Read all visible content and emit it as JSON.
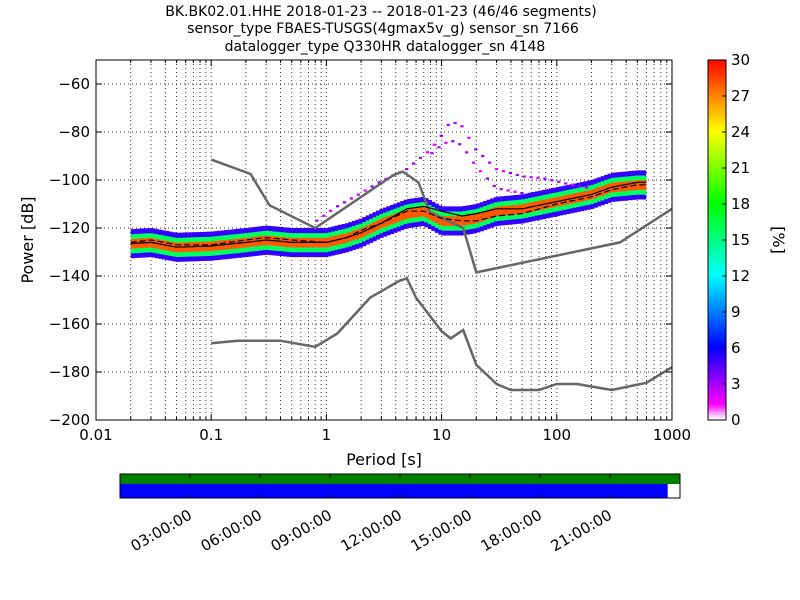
{
  "chart_data": {
    "type": "heatmap",
    "title_lines": [
      "BK.BK02.01.HHE   2018-01-23 -- 2018-01-23  (46/46 segments)",
      "sensor_type FBAES-TUSGS(4gmax5v_g) sensor_sn 7166",
      "datalogger_type Q330HR datalogger_sn 4148"
    ],
    "xlabel": "Period [s]",
    "ylabel": "Power [dB]",
    "xscale": "log",
    "xlim": [
      0.01,
      1000
    ],
    "ylim": [
      -200,
      -50
    ],
    "xticks": [
      {
        "value": 0.01,
        "label": "0.01"
      },
      {
        "value": 0.1,
        "label": "0.1"
      },
      {
        "value": 1,
        "label": "1"
      },
      {
        "value": 10,
        "label": "10"
      },
      {
        "value": 100,
        "label": "100"
      },
      {
        "value": 1000,
        "label": "1000"
      }
    ],
    "yticks": [
      {
        "value": -60,
        "label": "−60"
      },
      {
        "value": -80,
        "label": "−80"
      },
      {
        "value": -100,
        "label": "−100"
      },
      {
        "value": -120,
        "label": "−120"
      },
      {
        "value": -140,
        "label": "−140"
      },
      {
        "value": -160,
        "label": "−160"
      },
      {
        "value": -180,
        "label": "−180"
      },
      {
        "value": -200,
        "label": "−200"
      }
    ],
    "grid": true,
    "colorbar": {
      "label": "[%]",
      "min": 0,
      "max": 30,
      "ticks": [
        {
          "value": 0,
          "label": "0"
        },
        {
          "value": 3,
          "label": "3"
        },
        {
          "value": 6,
          "label": "6"
        },
        {
          "value": 9,
          "label": "9"
        },
        {
          "value": 12,
          "label": "12"
        },
        {
          "value": 15,
          "label": "15"
        },
        {
          "value": 18,
          "label": "18"
        },
        {
          "value": 21,
          "label": "21"
        },
        {
          "value": 24,
          "label": "24"
        },
        {
          "value": 27,
          "label": "27"
        },
        {
          "value": 30,
          "label": "30"
        }
      ]
    },
    "noise_models": [
      {
        "points": [
          [
            0.1,
            -168
          ],
          [
            0.17,
            -167
          ],
          [
            0.4,
            -167
          ],
          [
            0.8,
            -169.5
          ],
          [
            1.24,
            -164
          ],
          [
            2.4,
            -149
          ],
          [
            4.3,
            -142
          ],
          [
            5.0,
            -141
          ],
          [
            6.0,
            -149
          ],
          [
            10,
            -163
          ],
          [
            12,
            -166
          ],
          [
            15.4,
            -162.5
          ],
          [
            20,
            -177
          ],
          [
            30,
            -185
          ],
          [
            40,
            -187.5
          ],
          [
            70,
            -187.5
          ],
          [
            100,
            -185
          ],
          [
            150,
            -185
          ],
          [
            300,
            -187.5
          ],
          [
            600,
            -184.5
          ],
          [
            1000,
            -178
          ]
        ]
      },
      {
        "points": [
          [
            0.1,
            -91.5
          ],
          [
            0.22,
            -97.5
          ],
          [
            0.32,
            -110.5
          ],
          [
            0.8,
            -120
          ],
          [
            3.8,
            -98
          ],
          [
            4.6,
            -96.5
          ],
          [
            6.3,
            -101
          ],
          [
            7.9,
            -113.5
          ],
          [
            15.4,
            -120
          ],
          [
            20,
            -138.5
          ],
          [
            354,
            -126
          ],
          [
            1000,
            -112
          ]
        ]
      }
    ],
    "mode_curve": [
      [
        0.02,
        -126.5
      ],
      [
        0.03,
        -126
      ],
      [
        0.05,
        -128
      ],
      [
        0.1,
        -127.5
      ],
      [
        0.2,
        -126
      ],
      [
        0.3,
        -125
      ],
      [
        0.5,
        -126
      ],
      [
        1,
        -126
      ],
      [
        1.5,
        -124
      ],
      [
        2,
        -122
      ],
      [
        3,
        -118
      ],
      [
        5,
        -112
      ],
      [
        7,
        -111
      ],
      [
        10,
        -113
      ],
      [
        15,
        -115
      ],
      [
        20,
        -114
      ],
      [
        30,
        -112
      ],
      [
        50,
        -112
      ],
      [
        100,
        -109
      ],
      [
        200,
        -106
      ],
      [
        300,
        -103
      ],
      [
        500,
        -101
      ],
      [
        600,
        -101
      ]
    ],
    "mean_curve": [
      [
        0.02,
        -126
      ],
      [
        0.03,
        -125
      ],
      [
        0.05,
        -127
      ],
      [
        0.1,
        -127
      ],
      [
        0.2,
        -125
      ],
      [
        0.3,
        -124
      ],
      [
        0.5,
        -125
      ],
      [
        1,
        -126
      ],
      [
        1.5,
        -124
      ],
      [
        2,
        -121
      ],
      [
        3,
        -118
      ],
      [
        5,
        -113
      ],
      [
        7,
        -113
      ],
      [
        10,
        -116
      ],
      [
        15,
        -117
      ],
      [
        20,
        -117
      ],
      [
        30,
        -115
      ],
      [
        50,
        -114
      ],
      [
        100,
        -110
      ],
      [
        200,
        -107
      ],
      [
        300,
        -104
      ],
      [
        500,
        -102
      ],
      [
        600,
        -102
      ]
    ],
    "density_bands": [
      {
        "name": "main",
        "points": [
          [
            0.02,
            -126.5
          ],
          [
            0.03,
            -126
          ],
          [
            0.05,
            -128
          ],
          [
            0.1,
            -127.5
          ],
          [
            0.2,
            -126
          ],
          [
            0.3,
            -125
          ],
          [
            0.5,
            -126
          ],
          [
            1,
            -126
          ],
          [
            1.5,
            -124
          ],
          [
            2,
            -122
          ],
          [
            3,
            -118
          ],
          [
            5,
            -114
          ],
          [
            7,
            -113
          ],
          [
            10,
            -117
          ],
          [
            15,
            -117
          ],
          [
            20,
            -116
          ],
          [
            30,
            -113
          ],
          [
            50,
            -112
          ],
          [
            100,
            -109
          ],
          [
            200,
            -106
          ],
          [
            300,
            -103
          ],
          [
            500,
            -102
          ],
          [
            600,
            -102
          ]
        ]
      },
      {
        "name": "upper-excursion",
        "points": [
          [
            0.8,
            -118
          ],
          [
            1.2,
            -112
          ],
          [
            2,
            -106
          ],
          [
            3,
            -101
          ],
          [
            5,
            -96
          ],
          [
            8,
            -88
          ],
          [
            10,
            -82
          ],
          [
            12,
            -76
          ],
          [
            15,
            -78
          ],
          [
            20,
            -88
          ],
          [
            30,
            -96
          ],
          [
            50,
            -99
          ],
          [
            80,
            -100
          ],
          [
            120,
            -102
          ],
          [
            200,
            -104
          ]
        ]
      },
      {
        "name": "arc",
        "points": [
          [
            8,
            -90
          ],
          [
            10,
            -86
          ],
          [
            12,
            -84
          ],
          [
            15,
            -86
          ],
          [
            20,
            -95
          ],
          [
            30,
            -104
          ],
          [
            50,
            -106
          ]
        ]
      }
    ],
    "time_axis": {
      "labels": [
        "03:00:00",
        "06:00:00",
        "09:00:00",
        "12:00:00",
        "15:00:00",
        "18:00:00",
        "21:00:00"
      ],
      "hours": [
        3,
        6,
        9,
        12,
        15,
        18,
        21
      ],
      "range_hours": [
        0,
        24
      ],
      "coverage_fraction": [
        0,
        0.978
      ],
      "colors": {
        "top_band": "#008000",
        "coverage": "#0000ff"
      }
    }
  }
}
